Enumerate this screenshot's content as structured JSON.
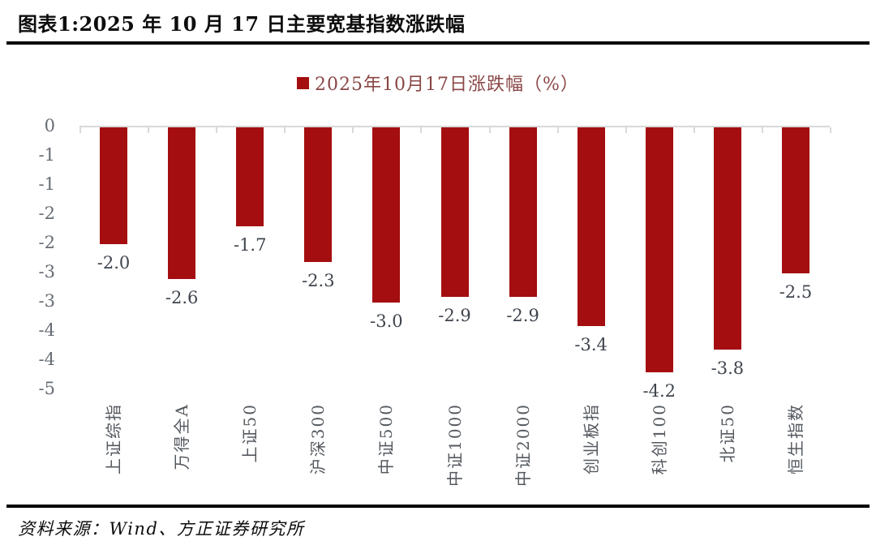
{
  "header": {
    "title": "图表1:2025 年 10 月 17 日主要宽基指数涨跌幅"
  },
  "chart_data": {
    "type": "bar",
    "title": "图表1:2025 年 10 月 17 日主要宽基指数涨跌幅",
    "legend": "2025年10月17日涨跌幅（%）",
    "legend_position": "top",
    "categories": [
      "上证综指",
      "万得全A",
      "上证50",
      "沪深300",
      "中证500",
      "中证1000",
      "中证2000",
      "创业板指",
      "科创100",
      "北证50",
      "恒生指数"
    ],
    "values": [
      -2.0,
      -2.6,
      -1.7,
      -2.3,
      -3.0,
      -2.9,
      -2.9,
      -3.4,
      -4.2,
      -3.8,
      -2.5
    ],
    "value_labels": [
      "-2.0",
      "-2.6",
      "-1.7",
      "-2.3",
      "-3.0",
      "-2.9",
      "-2.9",
      "-3.4",
      "-4.2",
      "-3.8",
      "-2.5"
    ],
    "xlabel": "",
    "ylabel": "",
    "ylim": [
      -4.5,
      0
    ],
    "y_ticks": [
      0,
      -0.5,
      -1,
      -1.5,
      -2,
      -2.5,
      -3,
      -3.5,
      -4,
      -4.5
    ],
    "y_tick_labels": [
      "0",
      "-1",
      "-1",
      "-2",
      "-2",
      "-3",
      "-3",
      "-4",
      "-4",
      "-5"
    ],
    "grid": false,
    "colors": {
      "bar": "#A40E10",
      "legend_text": "#8A4646",
      "axis_line": "#D9D9D9",
      "y_tick_text": "#666C74",
      "value_label_text": "#3F454E",
      "category_text": "#54595F"
    }
  },
  "footer": {
    "source": "资料来源：Wind、方正证券研究所"
  }
}
